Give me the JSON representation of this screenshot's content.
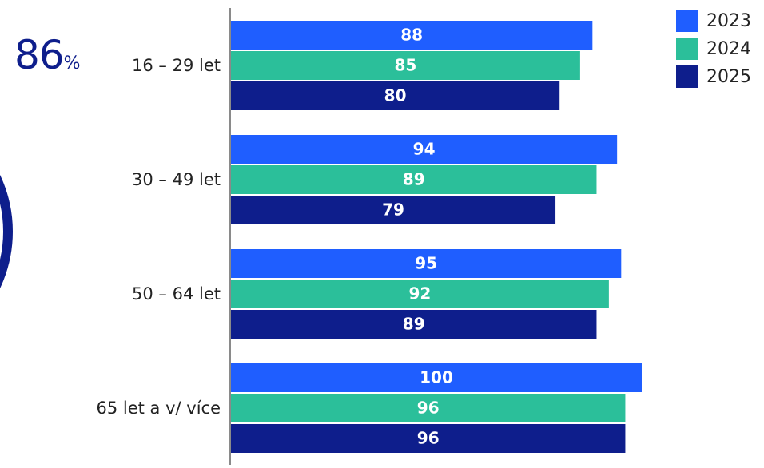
{
  "side_stat": {
    "value": "86",
    "unit": "%"
  },
  "colors": {
    "2023": "#1f5eff",
    "2024": "#2bbf9a",
    "2025": "#0e1e8c",
    "axis": "#8a8a8a",
    "label_text": "#222222",
    "value_text": "#ffffff",
    "ring": "#0e1e8c",
    "stat_text": "#0e1e8c"
  },
  "chart_data": {
    "type": "bar",
    "orientation": "horizontal",
    "categories": [
      "16 – 29 let",
      "30 – 49 let",
      "50 – 64 let",
      "65 let a v/ více"
    ],
    "series": [
      {
        "name": "2023",
        "values": [
          88,
          94,
          95,
          100
        ]
      },
      {
        "name": "2024",
        "values": [
          85,
          89,
          92,
          96
        ]
      },
      {
        "name": "2025",
        "values": [
          80,
          79,
          89,
          96
        ]
      }
    ],
    "data_labels": true,
    "legend_position": "top-right",
    "grid": false,
    "xlim": [
      0,
      100
    ]
  }
}
